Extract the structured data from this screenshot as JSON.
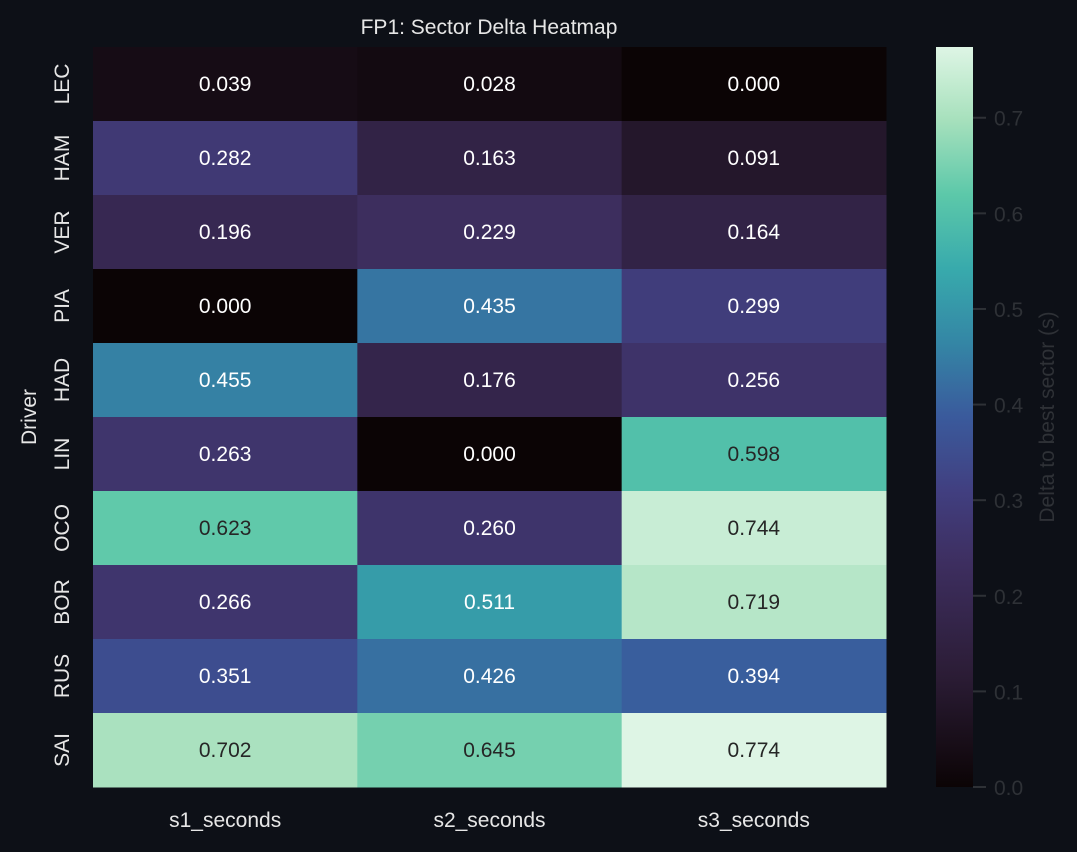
{
  "chart_data": {
    "type": "heatmap",
    "title": "FP1: Sector Delta Heatmap",
    "xlabel": "",
    "ylabel": "Driver",
    "x_categories": [
      "s1_seconds",
      "s2_seconds",
      "s3_seconds"
    ],
    "y_categories": [
      "LEC",
      "HAM",
      "VER",
      "PIA",
      "HAD",
      "LIN",
      "OCO",
      "BOR",
      "RUS",
      "SAI"
    ],
    "values": [
      [
        0.039,
        0.028,
        0.0
      ],
      [
        0.282,
        0.163,
        0.091
      ],
      [
        0.196,
        0.229,
        0.164
      ],
      [
        0.0,
        0.435,
        0.299
      ],
      [
        0.455,
        0.176,
        0.256
      ],
      [
        0.263,
        0.0,
        0.598
      ],
      [
        0.623,
        0.26,
        0.744
      ],
      [
        0.266,
        0.511,
        0.719
      ],
      [
        0.351,
        0.426,
        0.394
      ],
      [
        0.702,
        0.645,
        0.774
      ]
    ],
    "colormap": "mako",
    "colorbar": {
      "label": "Delta to best sector (s)",
      "range": [
        0.0,
        0.774
      ],
      "ticks": [
        "0.0",
        "0.1",
        "0.2",
        "0.3",
        "0.4",
        "0.5",
        "0.6",
        "0.7"
      ]
    },
    "annotations": true,
    "value_format": "0.000"
  },
  "colors": {
    "background": "#0d1017",
    "text": "#e6e6e6",
    "colorbar_text": "#2e3136",
    "annot_dark": "#262626",
    "annot_light": "#ffffff"
  }
}
